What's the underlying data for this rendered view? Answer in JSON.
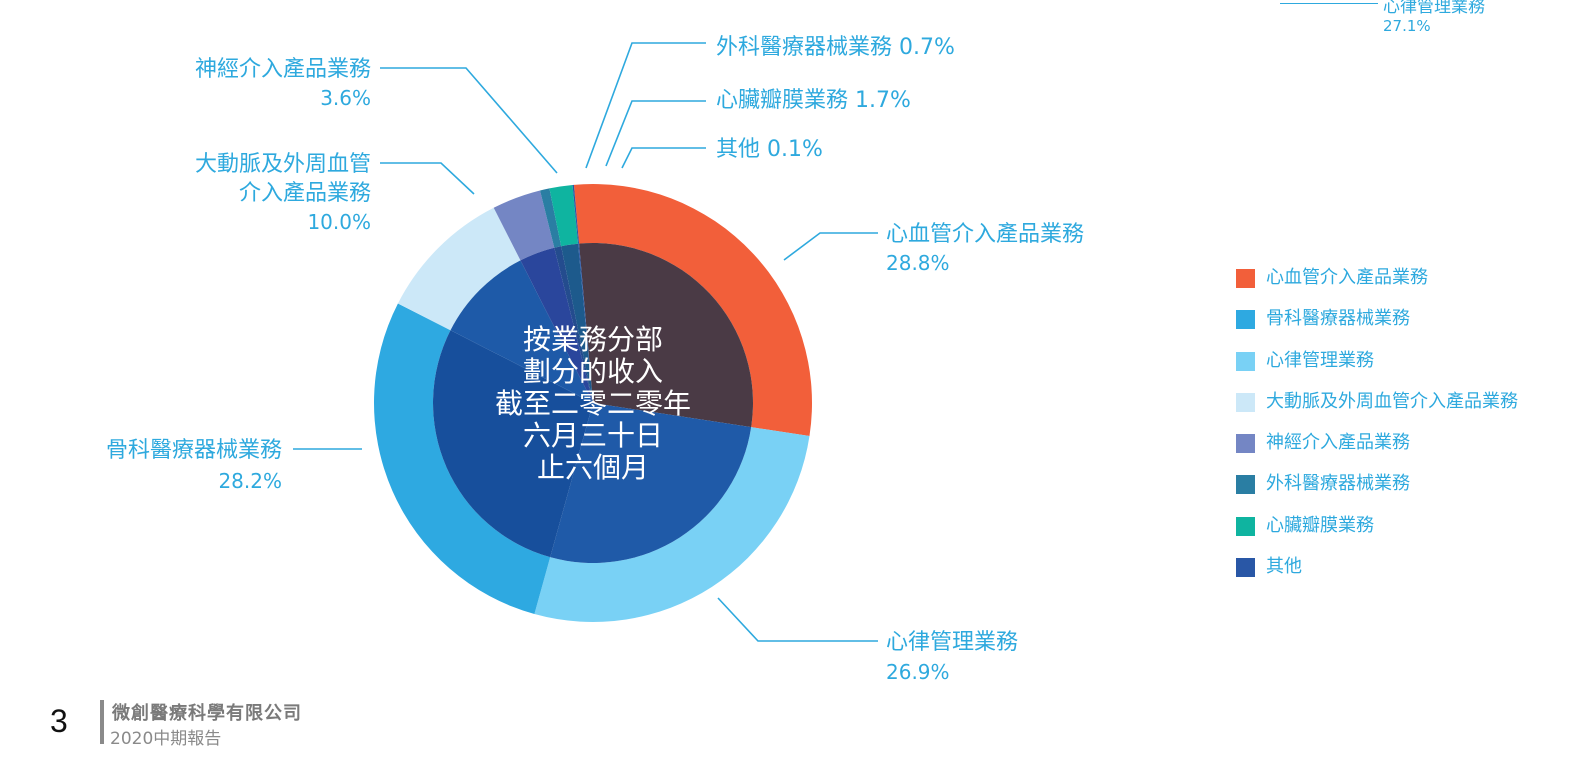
{
  "chart_data": {
    "type": "pie",
    "style": "double-ring donut",
    "center_text": [
      "按業務分部",
      "劃分的收入",
      "截至二零二零年",
      "六月三十日",
      "止六個月"
    ],
    "slices": [
      {
        "name": "心血管介入產品業務",
        "value_label": "28.8%",
        "value": 28.8,
        "color": "#f25f3a",
        "inner_color": "#4a3a45"
      },
      {
        "name": "心律管理業務",
        "value_label": "26.9%",
        "value": 26.9,
        "color": "#79d1f5",
        "inner_color": "#1f5aa8"
      },
      {
        "name": "骨科醫療器械業務",
        "value_label": "28.2%",
        "value": 28.2,
        "color": "#2ea9e1",
        "inner_color": "#174f9c"
      },
      {
        "name": "大動脈及外周血管介入產品業務",
        "label_lines": [
          "大動脈及外周血管",
          "介入產品業務"
        ],
        "value_label": "10.0%",
        "value": 10.0,
        "color": "#cce8f8",
        "inner_color": "#1e5aa8"
      },
      {
        "name": "神經介入產品業務",
        "value_label": "3.6%",
        "value": 3.6,
        "color": "#7486c4",
        "inner_color": "#2a469c"
      },
      {
        "name": "外科醫療器械業務",
        "value_label": "0.7%",
        "value": 0.7,
        "color": "#2a7ea3",
        "inner_color": "#244c8e"
      },
      {
        "name": "心臟瓣膜業務",
        "value_label": "1.7%",
        "value": 1.7,
        "color": "#0fb4a0",
        "inner_color": "#1d5a8c"
      },
      {
        "name": "其他",
        "value_label": "0.1%",
        "value": 0.1,
        "color": "#2957a6",
        "inner_color": "#2957a6"
      }
    ],
    "legend_placement": "right",
    "legend": [
      {
        "label": "心血管介入產品業務",
        "color": "#f25f3a"
      },
      {
        "label": "骨科醫療器械業務",
        "color": "#2ea9e1"
      },
      {
        "label": "心律管理業務",
        "color": "#79d1f5"
      },
      {
        "label": "大動脈及外周血管介入產品業務",
        "color": "#cce8f8"
      },
      {
        "label": "神經介入產品業務",
        "color": "#7486c4"
      },
      {
        "label": "外科醫療器械業務",
        "color": "#2a7ea3"
      },
      {
        "label": "心臟瓣膜業務",
        "color": "#0fb4a0"
      },
      {
        "label": "其他",
        "color": "#2957a6"
      }
    ],
    "label_color": "#2ea9de"
  },
  "top_fragment": {
    "label": "心律管理業務",
    "value": "27.1%"
  },
  "footer": {
    "page_number": "3",
    "company": "微創醫療科學有限公司",
    "report": "2020中期報告"
  }
}
